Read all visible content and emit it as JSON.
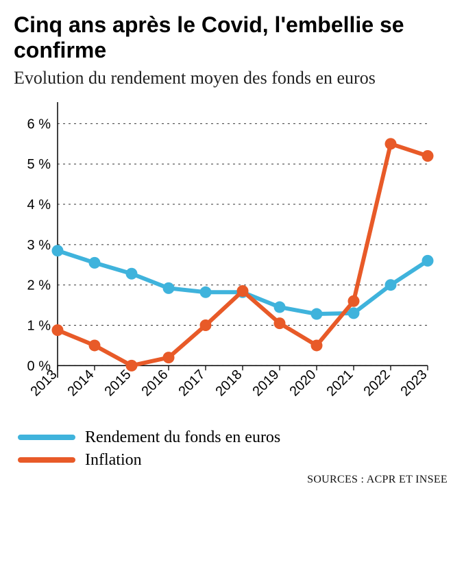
{
  "title": "Cinq ans après le Covid, l'embellie se confirme",
  "subtitle": "Evolution du rendement moyen des fonds en euros",
  "source": "SOURCES : ACPR ET INSEE",
  "chart": {
    "type": "line",
    "xlabels": [
      "2013",
      "2014",
      "2015",
      "2016",
      "2017",
      "2018",
      "2019",
      "2020",
      "2021",
      "2022",
      "2023"
    ],
    "ytick_labels": [
      "0 %",
      "1 %",
      "2 %",
      "3 %",
      "4 %",
      "5 %",
      "6 %"
    ],
    "ytick_values": [
      0,
      1,
      2,
      3,
      4,
      5,
      6
    ],
    "ylim": [
      -0.3,
      6.5
    ],
    "background_color": "#ffffff",
    "grid_color": "#333333",
    "grid_dash": "3,5",
    "axis_line_color": "#000000",
    "axis_line_width": 1.5,
    "xlabel_fontsize": 20,
    "ylabel_fontsize": 20,
    "xlabel_rotation": -45,
    "line_width": 6,
    "marker_radius": 8.5,
    "series": [
      {
        "key": "rendement",
        "label": "Rendement du fonds en euros",
        "color": "#3fb3dc",
        "values": [
          2.85,
          2.55,
          2.28,
          1.92,
          1.82,
          1.82,
          1.45,
          1.28,
          1.3,
          2.0,
          2.6
        ]
      },
      {
        "key": "inflation",
        "label": "Inflation",
        "color": "#e85a28",
        "values": [
          0.88,
          0.5,
          0.0,
          0.2,
          1.0,
          1.85,
          1.05,
          0.5,
          1.6,
          5.5,
          5.2
        ]
      }
    ]
  },
  "legend": {
    "swatch_width": 84,
    "swatch_height": 8,
    "label_fontsize": 24
  }
}
